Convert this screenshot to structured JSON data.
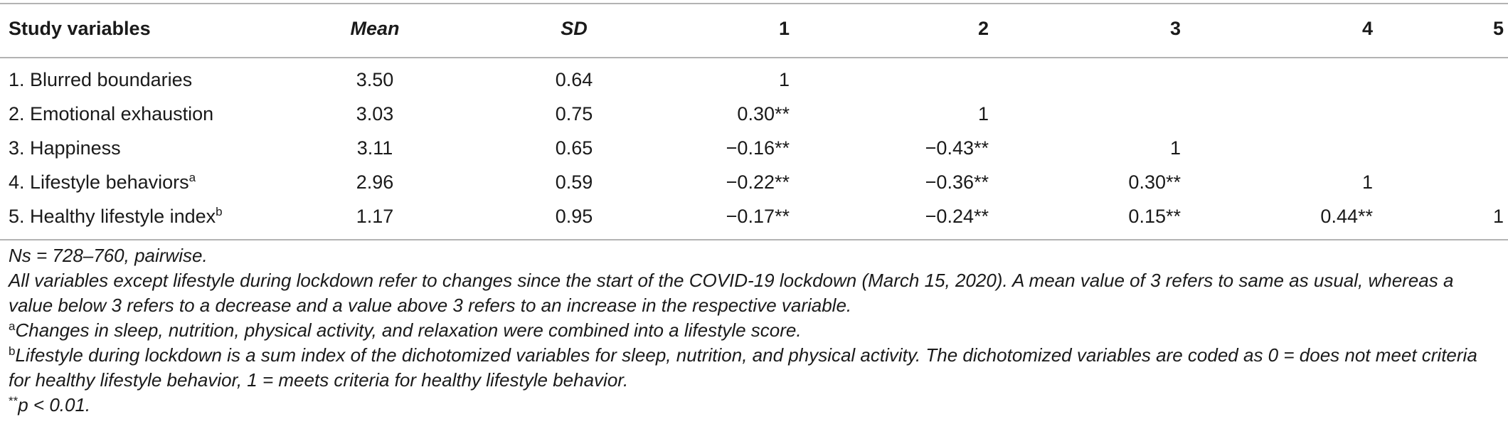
{
  "table": {
    "headers": {
      "variables": "Study variables",
      "mean": "Mean",
      "sd": "SD",
      "c1": "1",
      "c2": "2",
      "c3": "3",
      "c4": "4",
      "c5": "5"
    },
    "rows": [
      {
        "label": "1. Blurred boundaries",
        "sup": "",
        "mean": "3.50",
        "sd": "0.64",
        "c1": "1",
        "c2": "",
        "c3": "",
        "c4": "",
        "c5": ""
      },
      {
        "label": "2. Emotional exhaustion",
        "sup": "",
        "mean": "3.03",
        "sd": "0.75",
        "c1": "0.30**",
        "c2": "1",
        "c3": "",
        "c4": "",
        "c5": ""
      },
      {
        "label": "3. Happiness",
        "sup": "",
        "mean": "3.11",
        "sd": "0.65",
        "c1": "−0.16**",
        "c2": "−0.43**",
        "c3": "1",
        "c4": "",
        "c5": ""
      },
      {
        "label": "4. Lifestyle behaviors",
        "sup": "a",
        "mean": "2.96",
        "sd": "0.59",
        "c1": "−0.22**",
        "c2": "−0.36**",
        "c3": "0.30**",
        "c4": "1",
        "c5": ""
      },
      {
        "label": "5. Healthy lifestyle index",
        "sup": "b",
        "mean": "1.17",
        "sd": "0.95",
        "c1": "−0.17**",
        "c2": "−0.24**",
        "c3": "0.15**",
        "c4": "0.44**",
        "c5": "1"
      }
    ]
  },
  "notes": {
    "ns": "Ns = 728–760, pairwise.",
    "variables": "All variables except lifestyle during lockdown refer to changes since the start of the COVID-19 lockdown (March 15, 2020). A mean value of 3 refers to same as usual, whereas a value below 3 refers to a decrease and a value above 3 refers to an increase in the respective variable.",
    "a_mark": "a",
    "a_text": "Changes in sleep, nutrition, physical activity, and relaxation were combined into a lifestyle score.",
    "b_mark": "b",
    "b_text": "Lifestyle during lockdown is a sum index of the dichotomized variables for sleep, nutrition, and physical activity. The dichotomized variables are coded as 0 = does not meet criteria for healthy lifestyle behavior, 1 = meets criteria for healthy lifestyle behavior.",
    "p_mark": "**",
    "p_text": "p < 0.01."
  }
}
